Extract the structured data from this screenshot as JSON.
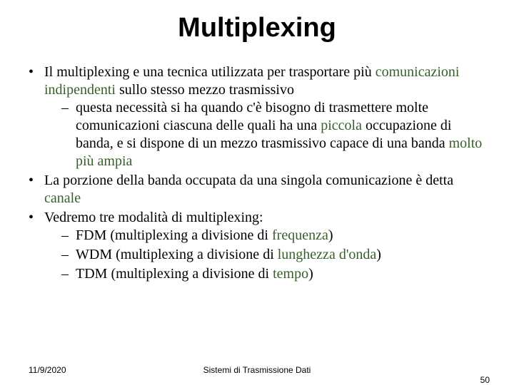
{
  "colors": {
    "background": "#ffffff",
    "text": "#000000",
    "highlight": "#375f2a"
  },
  "typography": {
    "title_font": "Comic Sans MS",
    "title_fontsize": 38,
    "title_weight": "bold",
    "body_font": "Times New Roman",
    "body_fontsize": 20,
    "footer_font": "Arial",
    "footer_fontsize": 12
  },
  "title": "Multiplexing",
  "bullets": {
    "b1a": "Il multiplexing e una tecnica utilizzata per trasportare più ",
    "b1b": "comunicazioni indipendenti",
    "b1c": " sullo stesso mezzo trasmissivo",
    "b1s1a": "questa necessità si ha quando c'è bisogno di trasmettere molte comunicazioni ciascuna delle quali ha una ",
    "b1s1b": "piccola",
    "b1s1c": " occupazione di banda, e si dispone di un mezzo trasmissivo capace di una banda ",
    "b1s1d": "molto più ampia",
    "b2a": "La porzione della banda occupata da una singola comunicazione è detta ",
    "b2b": "canale",
    "b3": "Vedremo tre modalità di multiplexing:",
    "b3s1a": "FDM (multiplexing a divisione di ",
    "b3s1b": "frequenza",
    "b3s1c": ")",
    "b3s2a": "WDM (multiplexing a divisione di ",
    "b3s2b": "lunghezza d'onda",
    "b3s2c": ")",
    "b3s3a": "TDM (multiplexing a divisione di ",
    "b3s3b": "tempo",
    "b3s3c": ")"
  },
  "footer": {
    "date": "11/9/2020",
    "title": "Sistemi di Trasmissione Dati",
    "page": "50"
  }
}
